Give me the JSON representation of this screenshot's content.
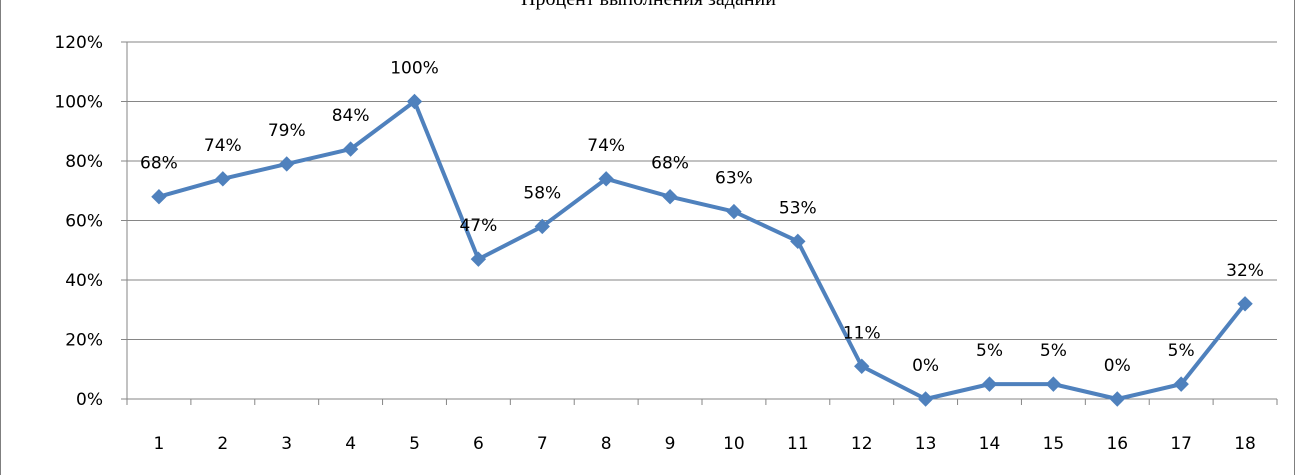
{
  "chart_data": {
    "type": "line",
    "title": "Процент выполнения заданий",
    "categories": [
      "1",
      "2",
      "3",
      "4",
      "5",
      "6",
      "7",
      "8",
      "9",
      "10",
      "11",
      "12",
      "13",
      "14",
      "15",
      "16",
      "17",
      "18"
    ],
    "series": [
      {
        "values": [
          68,
          74,
          79,
          84,
          100,
          47,
          58,
          74,
          68,
          63,
          53,
          11,
          0,
          5,
          5,
          0,
          5,
          32
        ],
        "labels": [
          "68%",
          "74%",
          "79%",
          "84%",
          "100%",
          "47%",
          "58%",
          "74%",
          "68%",
          "63%",
          "53%",
          "11%",
          "0%",
          "5%",
          "5%",
          "0%",
          "5%",
          "32%"
        ],
        "color": "#4f81bd"
      }
    ],
    "ylim": [
      0,
      120
    ],
    "yticks": [
      0,
      20,
      40,
      60,
      80,
      100,
      120
    ],
    "ytick_labels": [
      "0%",
      "20%",
      "40%",
      "60%",
      "80%",
      "100%",
      "120%"
    ],
    "grid": true,
    "legend": "none",
    "marker": "diamond"
  }
}
